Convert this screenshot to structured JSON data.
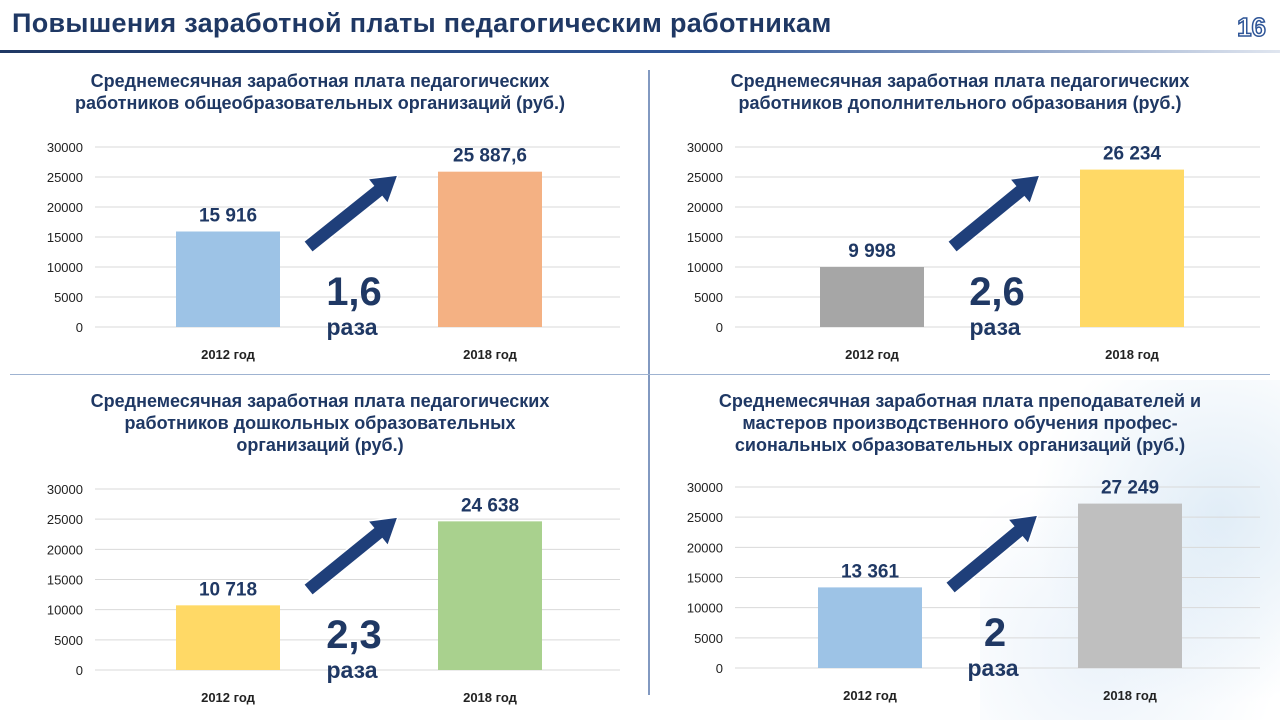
{
  "slide": {
    "title": "Повышения заработной платы педагогическим работникам",
    "page_number": "16"
  },
  "colors": {
    "title": "#1f3864",
    "arrow": "#1f3f7a",
    "grid": "#d9d9d9"
  },
  "chart_data": [
    {
      "type": "bar",
      "title_lines": [
        "Среднемесячная заработная плата педагогических",
        "работников общеобразовательных организаций (руб.)"
      ],
      "categories": [
        "2012 год",
        "2018 год"
      ],
      "values": [
        15916,
        25887.6
      ],
      "value_labels": [
        "15 916",
        "25 887,6"
      ],
      "bar_colors": [
        "#9dc3e6",
        "#f4b183"
      ],
      "ylim": [
        0,
        30000
      ],
      "yticks": [
        "0",
        "5000",
        "10000",
        "15000",
        "20000",
        "25000",
        "30000"
      ],
      "grid": true,
      "ratio": "1,6",
      "ratio_word": "раза"
    },
    {
      "type": "bar",
      "title_lines": [
        "Среднемесячная заработная плата педагогических",
        "работников дополнительного образования (руб.)"
      ],
      "categories": [
        "2012 год",
        "2018 год"
      ],
      "values": [
        9998,
        26234
      ],
      "value_labels": [
        "9 998",
        "26 234"
      ],
      "bar_colors": [
        "#a6a6a6",
        "#ffd966"
      ],
      "ylim": [
        0,
        30000
      ],
      "yticks": [
        "0",
        "5000",
        "10000",
        "15000",
        "20000",
        "25000",
        "30000"
      ],
      "grid": true,
      "ratio": "2,6",
      "ratio_word": "раза"
    },
    {
      "type": "bar",
      "title_lines": [
        "Среднемесячная заработная плата педагогических",
        "работников дошкольных образовательных",
        "организаций (руб.)"
      ],
      "categories": [
        "2012 год",
        "2018 год"
      ],
      "values": [
        10718,
        24638
      ],
      "value_labels": [
        "10 718",
        "24 638"
      ],
      "bar_colors": [
        "#ffd966",
        "#a9d18e"
      ],
      "ylim": [
        0,
        30000
      ],
      "yticks": [
        "0",
        "5000",
        "10000",
        "15000",
        "20000",
        "25000",
        "30000"
      ],
      "grid": true,
      "ratio": "2,3",
      "ratio_word": "раза"
    },
    {
      "type": "bar",
      "title_lines": [
        "Среднемесячная заработная плата преподавателей и",
        "мастеров производственного обучения профес-",
        "сиональных образовательных организаций (руб.)"
      ],
      "categories": [
        "2012 год",
        "2018 год"
      ],
      "values": [
        13361,
        27249
      ],
      "value_labels": [
        "13 361",
        "27 249"
      ],
      "bar_colors": [
        "#9dc3e6",
        "#bfbfbf"
      ],
      "ylim": [
        0,
        30000
      ],
      "yticks": [
        "0",
        "5000",
        "10000",
        "15000",
        "20000",
        "25000",
        "30000"
      ],
      "grid": true,
      "ratio": "2",
      "ratio_word": "раза"
    }
  ]
}
